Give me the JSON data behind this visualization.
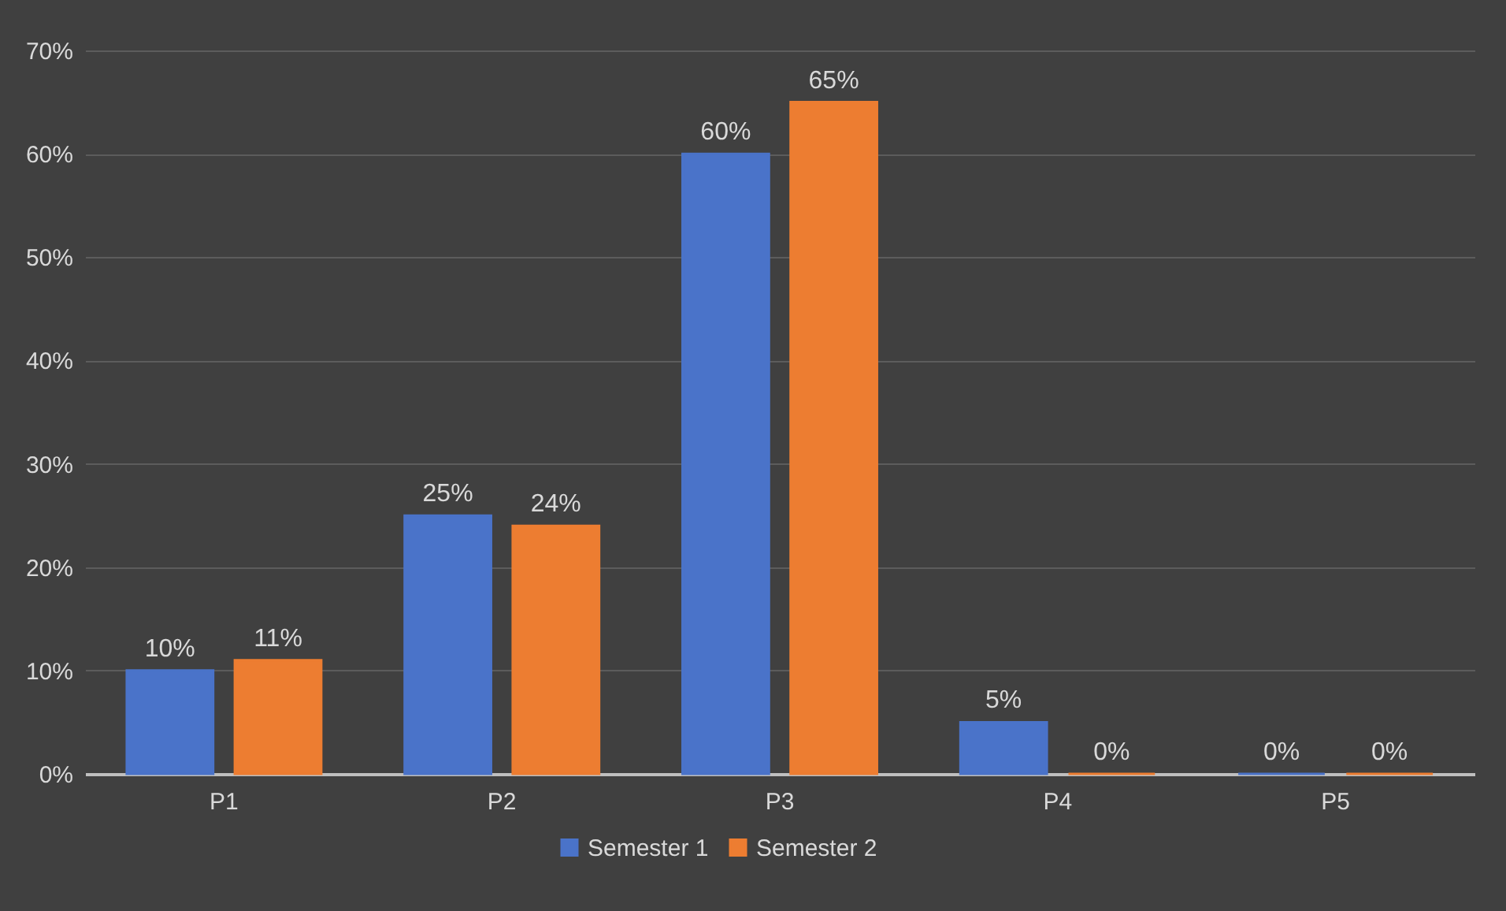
{
  "chart_data": {
    "type": "bar",
    "categories": [
      "P1",
      "P2",
      "P3",
      "P4",
      "P5"
    ],
    "series": [
      {
        "name": "Semester 1",
        "color": "#4a73c9",
        "values": [
          10,
          25,
          60,
          5,
          0
        ],
        "value_labels": [
          "10%",
          "25%",
          "60%",
          "5%",
          "0%"
        ]
      },
      {
        "name": "Semester 2",
        "color": "#ed7d31",
        "values": [
          11,
          24,
          65,
          0,
          0
        ],
        "value_labels": [
          "11%",
          "24%",
          "65%",
          "0%",
          "0%"
        ]
      }
    ],
    "ylim": [
      0,
      70
    ],
    "yticks": [
      {
        "value": 0,
        "label": "0%"
      },
      {
        "value": 10,
        "label": "10%"
      },
      {
        "value": 20,
        "label": "20%"
      },
      {
        "value": 30,
        "label": "30%"
      },
      {
        "value": 40,
        "label": "40%"
      },
      {
        "value": 50,
        "label": "50%"
      },
      {
        "value": 60,
        "label": "60%"
      },
      {
        "value": 70,
        "label": "70%"
      }
    ],
    "grid": "y",
    "legend": "bottom"
  }
}
